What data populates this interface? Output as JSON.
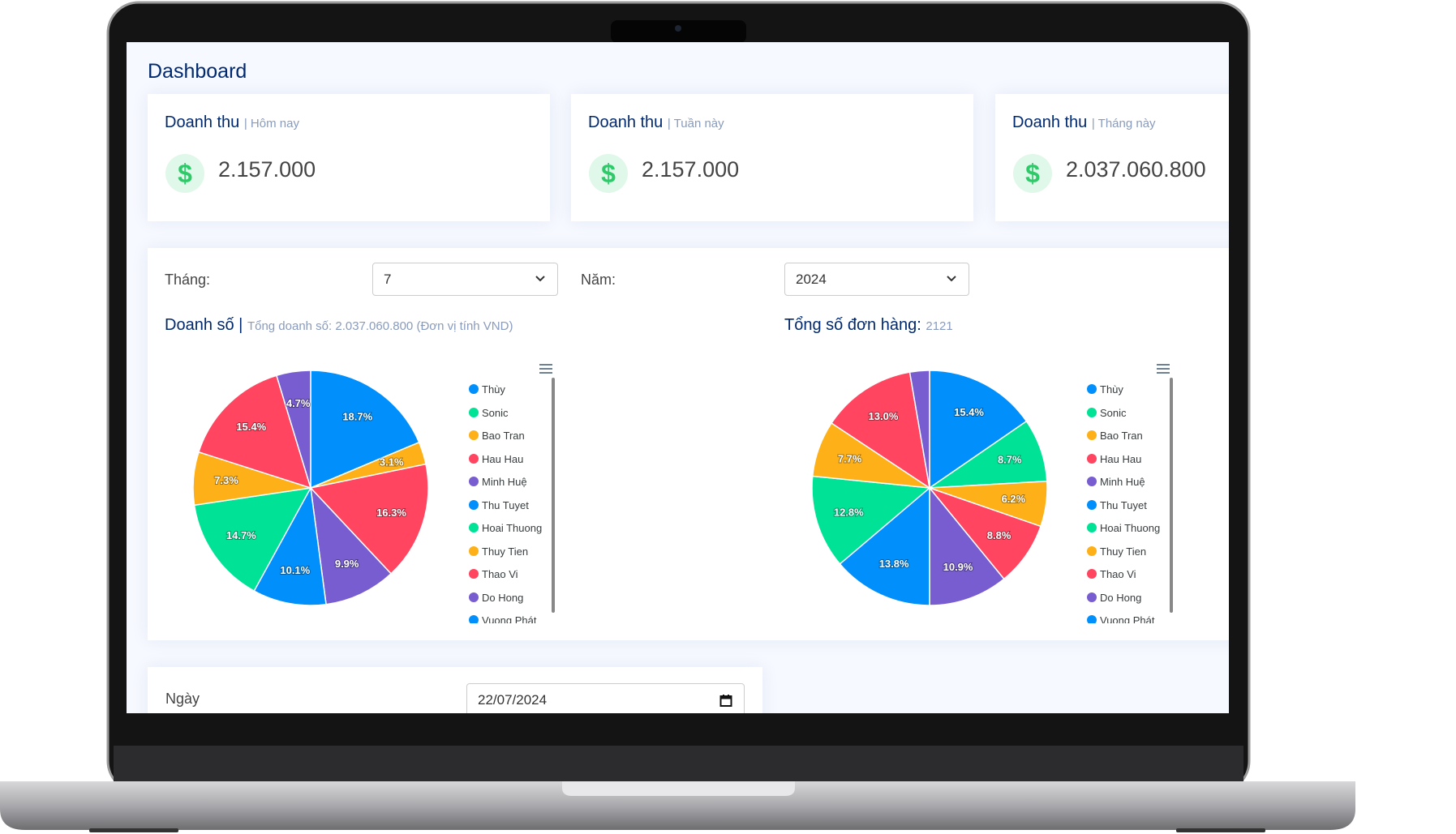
{
  "header": {
    "title": "Dashboard"
  },
  "cards": [
    {
      "title": "Doanh thu",
      "subtitle": "| Hôm nay",
      "icon": "$",
      "value": "2.157.000"
    },
    {
      "title": "Doanh thu",
      "subtitle": "| Tuần này",
      "icon": "$",
      "value": "2.157.000"
    },
    {
      "title": "Doanh thu",
      "subtitle": "| Tháng này",
      "icon": "$",
      "value": "2.037.060.800"
    }
  ],
  "filters": {
    "month_label": "Tháng:",
    "month": "7",
    "year_label": "Năm:",
    "year": "2024"
  },
  "chart_data": [
    {
      "type": "pie",
      "title": "Doanh số |",
      "subtitle": "Tổng doanh số: 2.037.060.800 (Đơn vị tính VND)",
      "categories": [
        "Thùy",
        "Sonic",
        "Bao Tran",
        "Hau Hau",
        "Minh Huệ",
        "Thu Tuyet",
        "Hoai Thuong",
        "Thuy Tien",
        "Thao Vi",
        "Do Hong",
        "Vuong Phát"
      ],
      "values": [
        18.7,
        0,
        3.1,
        16.3,
        9.9,
        10.1,
        14.7,
        7.3,
        15.4,
        4.7,
        0
      ],
      "value_labels": [
        "18.7%",
        null,
        "3.1%",
        "16.3%",
        "9.9%",
        "10.1%",
        "14.7%",
        "7.3%",
        "15.4%",
        "4.7%",
        null
      ],
      "colors": [
        "#008ffb",
        "#00e396",
        "#feb019",
        "#ff4560",
        "#775dd0",
        "#008ffb",
        "#00e396",
        "#feb019",
        "#ff4560",
        "#775dd0",
        "#008ffb"
      ],
      "legend": "right"
    },
    {
      "type": "pie",
      "title": "Tổng số đơn hàng:",
      "subtitle": "2121",
      "categories": [
        "Thùy",
        "Sonic",
        "Bao Tran",
        "Hau Hau",
        "Minh Huệ",
        "Thu Tuyet",
        "Hoai Thuong",
        "Thuy Tien",
        "Thao Vi",
        "Do Hong",
        "Vuong Phát"
      ],
      "values": [
        15.4,
        8.7,
        6.2,
        8.8,
        10.9,
        13.8,
        12.8,
        7.7,
        13,
        2.7,
        0
      ],
      "value_labels": [
        "15.4%",
        "8.7%",
        "6.2%",
        "8.8%",
        "10.9%",
        "13.8%",
        "12.8%",
        "7.7%",
        "13.0%",
        null,
        null
      ],
      "colors": [
        "#008ffb",
        "#00e396",
        "#feb019",
        "#ff4560",
        "#775dd0",
        "#008ffb",
        "#00e396",
        "#feb019",
        "#ff4560",
        "#775dd0",
        "#008ffb"
      ],
      "legend": "right"
    }
  ],
  "date_filter": {
    "label": "Ngày",
    "value": "22/07/2024"
  }
}
